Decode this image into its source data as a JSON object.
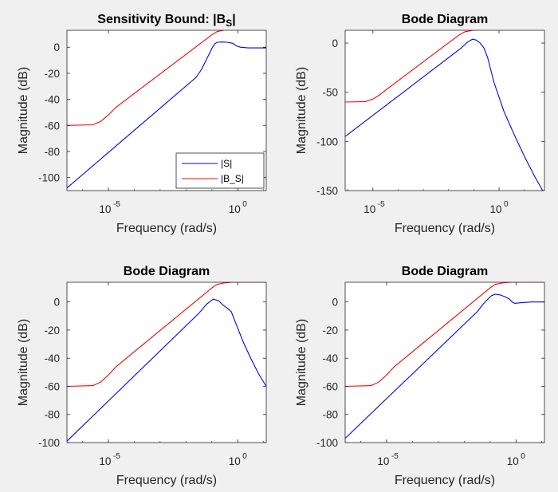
{
  "colors": {
    "background": "#f0f0f0",
    "axes_bg": "#ffffff",
    "axis": "#262626",
    "S": "#0000ff",
    "B_S": "#ff0000"
  },
  "chart_data": [
    {
      "type": "line",
      "title": "Sensitivity Bound: |B",
      "title_sub": "S",
      "title_suffix": "|",
      "xlabel": "Frequency  (rad/s)",
      "ylabel": "Magnitude (dB)",
      "xscale": "log",
      "xlim_log10": [
        -6.6,
        1.1
      ],
      "ylim": [
        -110,
        13
      ],
      "xticks": [
        {
          "base": "10",
          "exp": "-5",
          "value_log10": -5
        },
        {
          "base": "10",
          "exp": "0",
          "value_log10": 0
        }
      ],
      "yticks": [
        0,
        -20,
        -40,
        -60,
        -80,
        -100
      ],
      "legend": {
        "position": "bottom-right",
        "entries": [
          "|S|",
          "|B_S|"
        ]
      },
      "series": [
        {
          "name": "|S|",
          "color": "#0000ff",
          "points": [
            [
              -6.6,
              -108
            ],
            [
              -1.6,
              -23
            ],
            [
              -1.4,
              -17
            ],
            [
              -1.2,
              -9
            ],
            [
              -1.0,
              -1
            ],
            [
              -0.9,
              2.5
            ],
            [
              -0.8,
              3.8
            ],
            [
              -0.6,
              4
            ],
            [
              -0.4,
              3.8
            ],
            [
              -0.2,
              3
            ],
            [
              -0.05,
              1
            ],
            [
              0.1,
              0
            ],
            [
              0.4,
              -0.5
            ],
            [
              1.1,
              -0.5
            ]
          ]
        },
        {
          "name": "|B_S|",
          "color": "#ff0000",
          "points": [
            [
              -6.6,
              -60
            ],
            [
              -5.6,
              -59.5
            ],
            [
              -5.3,
              -57
            ],
            [
              -5.0,
              -52
            ],
            [
              -4.7,
              -46
            ],
            [
              -1.0,
              9.5
            ],
            [
              -0.8,
              12
            ],
            [
              -0.5,
              13.2
            ],
            [
              -0.2,
              13.5
            ],
            [
              1.1,
              13.5
            ]
          ]
        }
      ]
    },
    {
      "type": "line",
      "title": "Bode Diagram",
      "xlabel": "Frequency  (rad/s)",
      "ylabel": "Magnitude (dB)",
      "xscale": "log",
      "xlim_log10": [
        -6.1,
        1.8
      ],
      "ylim": [
        -150,
        13
      ],
      "xticks": [
        {
          "base": "10",
          "exp": "-5",
          "value_log10": -5
        },
        {
          "base": "10",
          "exp": "0",
          "value_log10": 0
        }
      ],
      "yticks": [
        0,
        -50,
        -100,
        -150
      ],
      "series": [
        {
          "name": "",
          "color": "#0000ff",
          "points": [
            [
              -6.1,
              -95
            ],
            [
              -1.5,
              -5
            ],
            [
              -1.25,
              1
            ],
            [
              -1.05,
              4
            ],
            [
              -0.9,
              3
            ],
            [
              -0.75,
              0
            ],
            [
              -0.6,
              -5
            ],
            [
              -0.45,
              -15
            ],
            [
              -0.2,
              -40
            ],
            [
              0.2,
              -70
            ],
            [
              0.6,
              -93
            ],
            [
              1.0,
              -115
            ],
            [
              1.4,
              -135
            ],
            [
              1.8,
              -153
            ]
          ]
        },
        {
          "name": "",
          "color": "#ff0000",
          "points": [
            [
              -6.1,
              -60
            ],
            [
              -5.3,
              -59.5
            ],
            [
              -5.0,
              -57
            ],
            [
              -4.75,
              -53
            ],
            [
              -4.5,
              -48
            ],
            [
              -1.6,
              8
            ],
            [
              -1.35,
              11.5
            ],
            [
              -1.0,
              13.2
            ],
            [
              -0.5,
              13.5
            ],
            [
              1.8,
              13.5
            ]
          ]
        }
      ]
    },
    {
      "type": "line",
      "title": "Bode Diagram",
      "xlabel": "Frequency  (rad/s)",
      "ylabel": "Magnitude (dB)",
      "xscale": "log",
      "xlim_log10": [
        -6.6,
        1.1
      ],
      "ylim": [
        -100,
        14
      ],
      "xticks": [
        {
          "base": "10",
          "exp": "-5",
          "value_log10": -5
        },
        {
          "base": "10",
          "exp": "0",
          "value_log10": 0
        }
      ],
      "yticks": [
        0,
        -20,
        -40,
        -60,
        -80,
        -100
      ],
      "series": [
        {
          "name": "",
          "color": "#0000ff",
          "points": [
            [
              -6.6,
              -99
            ],
            [
              -1.5,
              -8
            ],
            [
              -1.2,
              -1.5
            ],
            [
              -0.95,
              2
            ],
            [
              -0.75,
              1
            ],
            [
              -0.55,
              -2.5
            ],
            [
              -0.4,
              -4.5
            ],
            [
              -0.25,
              -7
            ],
            [
              -0.1,
              -14
            ],
            [
              0.2,
              -28
            ],
            [
              0.5,
              -40
            ],
            [
              0.8,
              -51
            ],
            [
              1.1,
              -60
            ]
          ]
        },
        {
          "name": "",
          "color": "#ff0000",
          "points": [
            [
              -6.6,
              -60
            ],
            [
              -5.6,
              -59.5
            ],
            [
              -5.3,
              -57
            ],
            [
              -5.0,
              -52
            ],
            [
              -4.7,
              -46
            ],
            [
              -1.0,
              10
            ],
            [
              -0.8,
              12.5
            ],
            [
              -0.5,
              13.6
            ],
            [
              -0.2,
              14
            ],
            [
              1.1,
              14
            ]
          ]
        }
      ]
    },
    {
      "type": "line",
      "title": "Bode Diagram",
      "xlabel": "Frequency  (rad/s)",
      "ylabel": "Magnitude (dB)",
      "xscale": "log",
      "xlim_log10": [
        -6.6,
        1.1
      ],
      "ylim": [
        -100,
        14
      ],
      "xticks": [
        {
          "base": "10",
          "exp": "-5",
          "value_log10": -5
        },
        {
          "base": "10",
          "exp": "0",
          "value_log10": 0
        }
      ],
      "yticks": [
        0,
        -20,
        -40,
        -60,
        -80,
        -100
      ],
      "series": [
        {
          "name": "",
          "color": "#0000ff",
          "points": [
            [
              -6.6,
              -97
            ],
            [
              -1.5,
              -7
            ],
            [
              -1.2,
              0
            ],
            [
              -0.95,
              4.5
            ],
            [
              -0.8,
              5.5
            ],
            [
              -0.6,
              5
            ],
            [
              -0.4,
              3.5
            ],
            [
              -0.25,
              2
            ],
            [
              -0.15,
              0
            ],
            [
              -0.05,
              -1
            ],
            [
              0.2,
              -0.5
            ],
            [
              0.6,
              0
            ],
            [
              1.1,
              0
            ]
          ]
        },
        {
          "name": "",
          "color": "#ff0000",
          "points": [
            [
              -6.6,
              -60
            ],
            [
              -5.6,
              -59.5
            ],
            [
              -5.3,
              -57
            ],
            [
              -5.0,
              -52
            ],
            [
              -4.7,
              -46
            ],
            [
              -1.0,
              10
            ],
            [
              -0.8,
              12.5
            ],
            [
              -0.5,
              13.6
            ],
            [
              -0.2,
              14
            ],
            [
              1.1,
              14
            ]
          ]
        }
      ]
    }
  ]
}
